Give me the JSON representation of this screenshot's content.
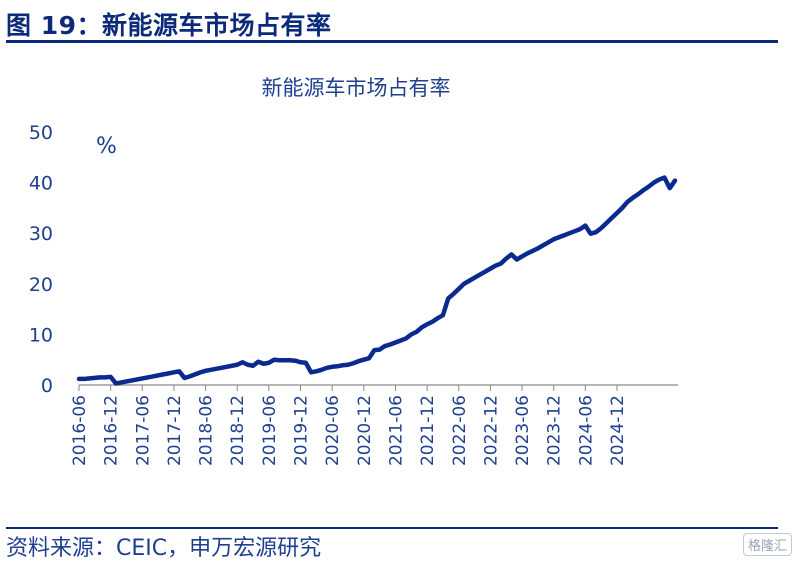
{
  "figure": {
    "label": "图 19：新能源车市场占有率"
  },
  "chart_data": {
    "type": "line",
    "title": "新能源车市场占有率",
    "unit_label": "%",
    "xlabel": "",
    "ylabel": "%",
    "ylim": [
      0,
      50
    ],
    "yticks": [
      0,
      10,
      20,
      30,
      40,
      50
    ],
    "grid": false,
    "legend": "none",
    "line_color": "#0b2a8f",
    "x_start": "2016-06",
    "x_tick_labels": [
      "2016-06",
      "2016-12",
      "2017-06",
      "2017-12",
      "2018-06",
      "2018-12",
      "2019-06",
      "2019-12",
      "2020-06",
      "2020-12",
      "2021-06",
      "2021-12",
      "2022-06",
      "2022-12",
      "2023-06",
      "2023-12",
      "2024-06",
      "2024-12"
    ],
    "series": [
      {
        "name": "新能源车市场占有率",
        "values": [
          1.2,
          1.2,
          1.3,
          1.4,
          1.5,
          1.5,
          1.6,
          0.3,
          0.5,
          0.7,
          0.9,
          1.1,
          1.3,
          1.5,
          1.7,
          1.9,
          2.1,
          2.3,
          2.5,
          2.7,
          1.4,
          1.7,
          2.1,
          2.5,
          2.8,
          3.0,
          3.2,
          3.4,
          3.6,
          3.8,
          4.0,
          4.5,
          4.0,
          3.8,
          4.6,
          4.2,
          4.4,
          5.0,
          4.9,
          4.9,
          4.9,
          4.8,
          4.5,
          4.4,
          2.5,
          2.7,
          3.0,
          3.4,
          3.6,
          3.7,
          3.9,
          4.0,
          4.3,
          4.7,
          5.0,
          5.3,
          6.9,
          7.0,
          7.7,
          8.0,
          8.4,
          8.8,
          9.2,
          10.0,
          10.5,
          11.4,
          12.0,
          12.5,
          13.2,
          13.8,
          17.1,
          18.0,
          19.0,
          20.0,
          20.6,
          21.2,
          21.8,
          22.4,
          23.0,
          23.6,
          24.0,
          25.0,
          25.8,
          24.8,
          25.4,
          26.0,
          26.5,
          27.0,
          27.6,
          28.2,
          28.8,
          29.2,
          29.6,
          30.0,
          30.4,
          30.8,
          31.5,
          29.9,
          30.2,
          31.0,
          32.0,
          33.0,
          34.0,
          35.0,
          36.2,
          37.0,
          37.7,
          38.5,
          39.2,
          40.0,
          40.6,
          41.0,
          38.9,
          40.4
        ]
      }
    ]
  },
  "footer": {
    "source": "资料来源：CEIC，申万宏源研究",
    "watermark": "格隆汇"
  }
}
